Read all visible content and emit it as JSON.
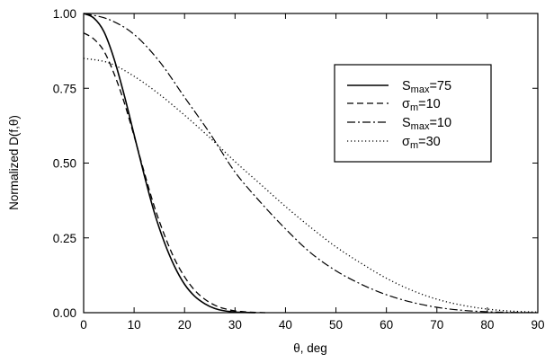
{
  "chart_data": {
    "type": "line",
    "xlabel": "θ, deg",
    "ylabel": "Normalized D(f,θ)",
    "xlim": [
      0,
      90
    ],
    "ylim": [
      0,
      1
    ],
    "x_ticks": [
      "0",
      "10",
      "20",
      "30",
      "40",
      "50",
      "60",
      "70",
      "80",
      "90"
    ],
    "y_ticks": [
      "0.00",
      "0.25",
      "0.50",
      "0.75",
      "1.00"
    ],
    "grid": false,
    "legend_position": "top-right, inside plot",
    "series": [
      {
        "name": "Smax=75",
        "name_base": "S",
        "name_sub": "max",
        "name_rest": "=75",
        "style": "solid",
        "x": [
          0,
          2,
          4,
          6,
          8,
          10,
          12,
          14,
          16,
          18,
          20,
          22,
          24,
          26,
          28,
          30,
          32,
          34
        ],
        "y": [
          1.0,
          0.985,
          0.94,
          0.85,
          0.73,
          0.595,
          0.46,
          0.335,
          0.235,
          0.155,
          0.095,
          0.055,
          0.03,
          0.014,
          0.006,
          0.002,
          0.001,
          0.0
        ]
      },
      {
        "name": "σm=10",
        "name_base": "σ",
        "name_sub": "m",
        "name_rest": "=10",
        "style": "dashed",
        "x": [
          0,
          2,
          4,
          6,
          8,
          10,
          12,
          14,
          16,
          18,
          20,
          22,
          24,
          26,
          28,
          30,
          32,
          34,
          36
        ],
        "y": [
          0.935,
          0.915,
          0.875,
          0.8,
          0.705,
          0.59,
          0.47,
          0.355,
          0.26,
          0.18,
          0.12,
          0.075,
          0.045,
          0.025,
          0.013,
          0.006,
          0.003,
          0.001,
          0.0
        ]
      },
      {
        "name": "Smax=10",
        "name_base": "S",
        "name_sub": "max",
        "name_rest": "=10",
        "style": "dashdot",
        "x": [
          0,
          5,
          10,
          15,
          20,
          25,
          30,
          35,
          40,
          45,
          50,
          55,
          60,
          65,
          70,
          75,
          80,
          85,
          90
        ],
        "y": [
          1.0,
          0.98,
          0.93,
          0.84,
          0.72,
          0.6,
          0.47,
          0.37,
          0.28,
          0.2,
          0.14,
          0.095,
          0.06,
          0.035,
          0.018,
          0.008,
          0.003,
          0.001,
          0.0
        ]
      },
      {
        "name": "σm=30",
        "name_base": "σ",
        "name_sub": "m",
        "name_rest": "=30",
        "style": "dotted",
        "x": [
          0,
          5,
          10,
          15,
          20,
          25,
          30,
          35,
          40,
          45,
          50,
          55,
          60,
          65,
          70,
          75,
          80,
          85,
          90
        ],
        "y": [
          0.85,
          0.835,
          0.79,
          0.73,
          0.66,
          0.585,
          0.505,
          0.43,
          0.355,
          0.285,
          0.22,
          0.165,
          0.115,
          0.075,
          0.045,
          0.025,
          0.012,
          0.005,
          0.002
        ]
      }
    ]
  }
}
